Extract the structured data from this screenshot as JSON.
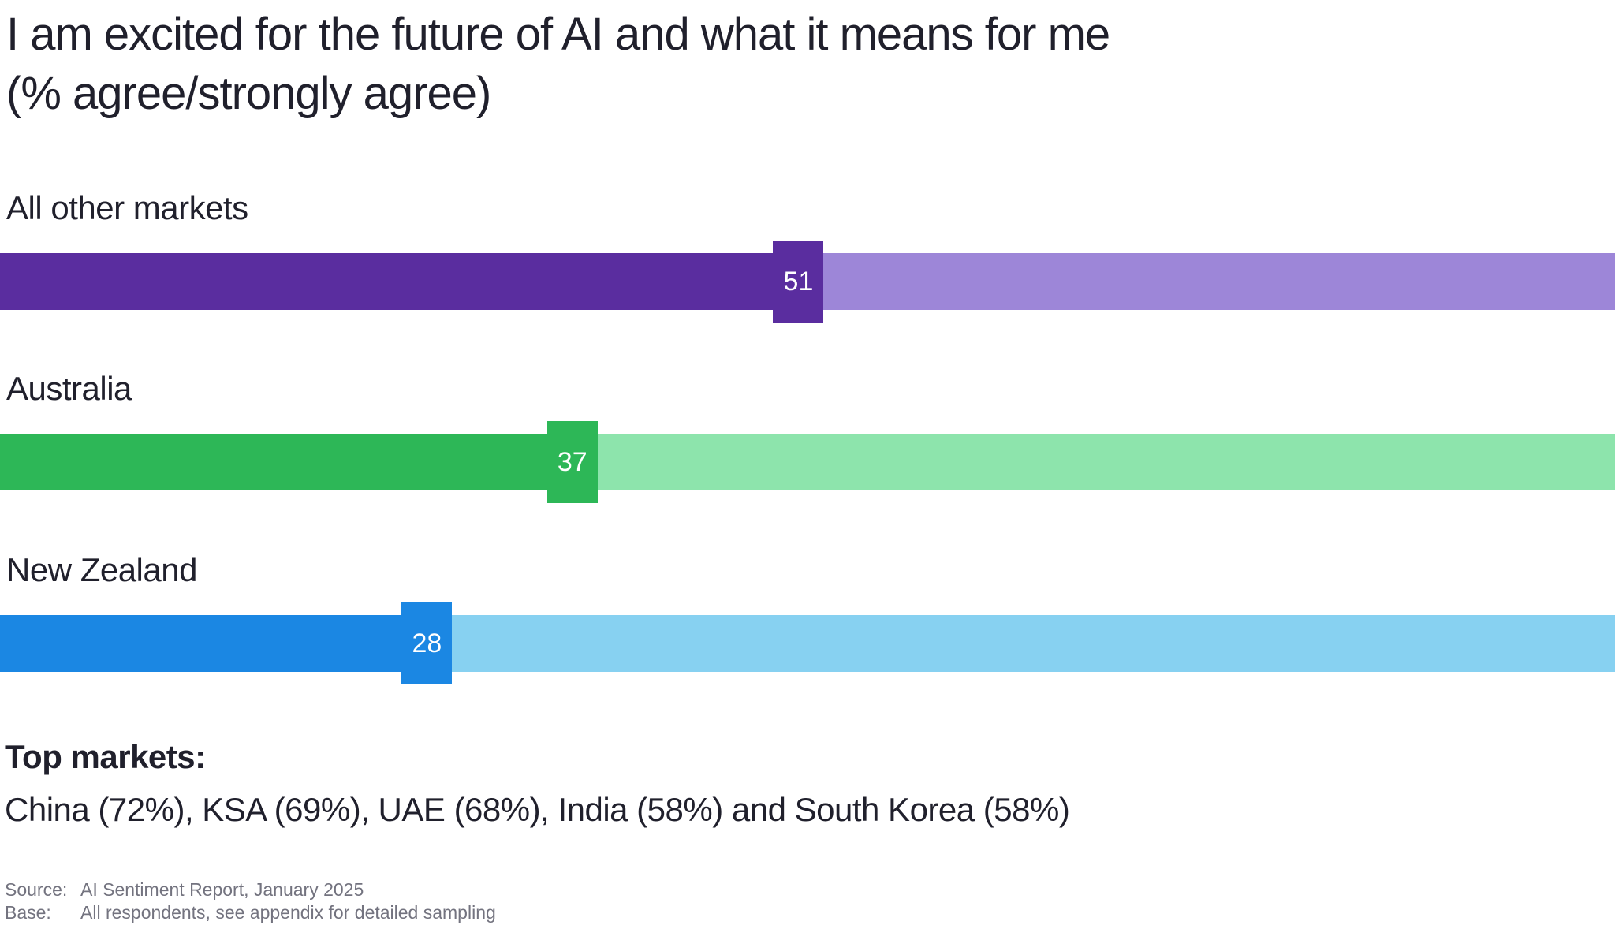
{
  "title": {
    "line1": "I am excited for the future of AI and what it means for me",
    "line2": "(% agree/strongly agree)"
  },
  "chart_data": {
    "type": "bar",
    "orientation": "horizontal",
    "title": "I am excited for the future of AI and what it means for me (% agree/strongly agree)",
    "categories": [
      "All other markets",
      "Australia",
      "New Zealand"
    ],
    "values": [
      51,
      37,
      28
    ],
    "value_unit": "% agree/strongly agree",
    "axis_range": [
      0,
      100
    ],
    "grid": false,
    "legend": false,
    "value_labels": "white numbers inside square marker at end of dark fill",
    "colors": [
      {
        "fill": "#5A2D9F",
        "track": "#9D86D8"
      },
      {
        "fill": "#2DB757",
        "track": "#8DE4AC"
      },
      {
        "fill": "#1B87E3",
        "track": "#87D1F1"
      }
    ],
    "value_label_color": "#FFFFFF",
    "annotation": "Top markets: China (72%), KSA (69%), UAE (68%), India (58%) and South Korea (58%)"
  },
  "top_markets": {
    "heading": "Top markets:",
    "list": "China (72%), KSA (69%), UAE (68%), India (58%) and South Korea (58%)"
  },
  "footnotes": {
    "source_label": "Source:",
    "source_text": "AI Sentiment Report, January 2025",
    "base_label": "Base:",
    "base_text": "All respondents, see appendix for detailed sampling"
  },
  "colors": {
    "text": "#20202C",
    "footnote": "#73737F",
    "background": "#FFFFFF"
  }
}
